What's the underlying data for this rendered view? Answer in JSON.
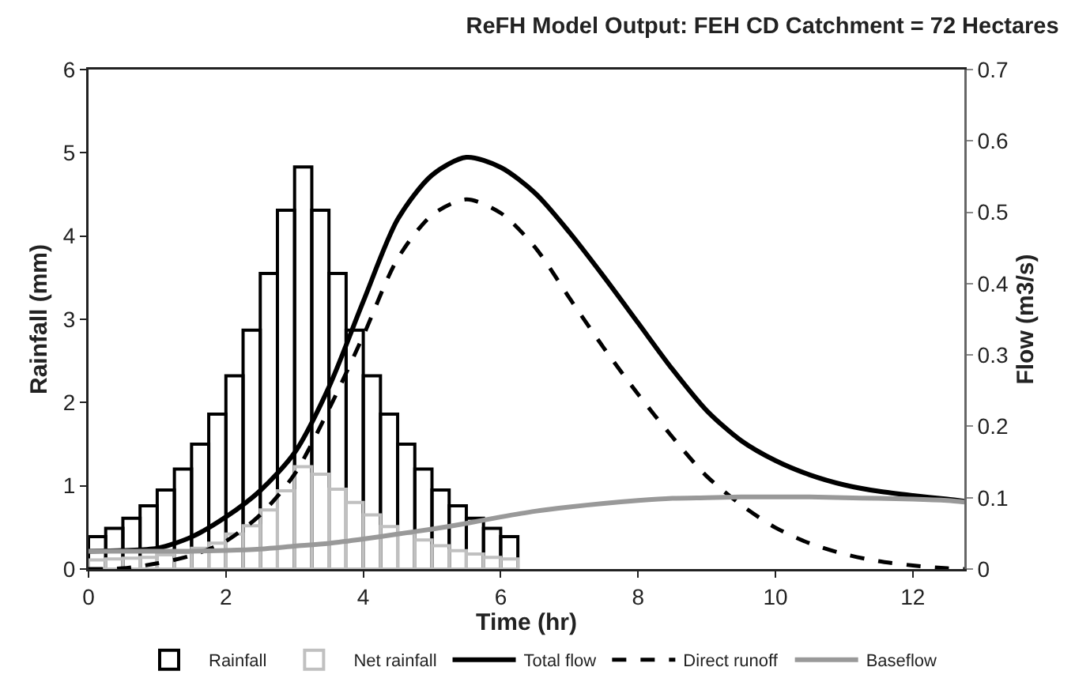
{
  "chart_data": {
    "type": "line",
    "title": "ReFH Model Output: FEH CD Catchment = 72 Hectares",
    "xlabel": "Time (hr)",
    "ylabel": "Rainfall (mm)",
    "y2label": "Flow (m3/s)",
    "xlim": [
      0,
      12.75
    ],
    "xticks": [
      0,
      2,
      4,
      6,
      8,
      10,
      12
    ],
    "ylim": [
      0,
      6
    ],
    "yticks": [
      0,
      1,
      2,
      3,
      4,
      5,
      6
    ],
    "y2lim": [
      0,
      0.7
    ],
    "y2ticks": [
      0,
      0.1,
      0.2,
      0.3,
      0.4,
      0.5,
      0.6,
      0.7
    ],
    "legend": "bottom",
    "series": [
      {
        "name": "Rainfall",
        "type": "bar",
        "color": "#000000",
        "x": [
          0.125,
          0.375,
          0.625,
          0.875,
          1.125,
          1.375,
          1.625,
          1.875,
          2.125,
          2.375,
          2.625,
          2.875,
          3.125,
          3.375,
          3.625,
          3.875,
          4.125,
          4.375,
          4.625,
          4.875,
          5.125,
          5.375,
          5.625,
          5.875,
          6.125
        ],
        "values": [
          0.39,
          0.49,
          0.61,
          0.76,
          0.95,
          1.2,
          1.5,
          1.86,
          2.32,
          2.87,
          3.55,
          4.31,
          4.83,
          4.31,
          3.55,
          2.87,
          2.32,
          1.86,
          1.5,
          1.2,
          0.95,
          0.76,
          0.61,
          0.49,
          0.39
        ]
      },
      {
        "name": "Net rainfall",
        "type": "bar",
        "color": "#c0c0c0",
        "x": [
          0.125,
          0.375,
          0.625,
          0.875,
          1.125,
          1.375,
          1.625,
          1.875,
          2.125,
          2.375,
          2.625,
          2.875,
          3.125,
          3.375,
          3.625,
          3.875,
          4.125,
          4.375,
          4.625,
          4.875,
          5.125,
          5.375,
          5.625,
          5.875,
          6.125
        ],
        "values": [
          0.11,
          0.12,
          0.13,
          0.14,
          0.17,
          0.2,
          0.25,
          0.31,
          0.42,
          0.52,
          0.71,
          0.94,
          1.23,
          1.14,
          0.96,
          0.8,
          0.65,
          0.51,
          0.43,
          0.35,
          0.28,
          0.22,
          0.18,
          0.14,
          0.12
        ]
      },
      {
        "name": "Total flow",
        "axis": "y2",
        "color": "#000000",
        "line_style": "solid",
        "x": [
          0,
          0.5,
          1,
          1.5,
          2,
          2.5,
          3,
          3.5,
          4,
          4.5,
          5,
          5.5,
          6,
          6.5,
          7,
          7.5,
          8,
          8.5,
          9,
          9.5,
          10,
          10.5,
          11,
          11.5,
          12,
          12.5,
          12.75
        ],
        "values": [
          0.025,
          0.026,
          0.029,
          0.045,
          0.073,
          0.11,
          0.163,
          0.255,
          0.375,
          0.49,
          0.552,
          0.577,
          0.563,
          0.527,
          0.472,
          0.41,
          0.345,
          0.28,
          0.222,
          0.18,
          0.152,
          0.132,
          0.118,
          0.109,
          0.103,
          0.098,
          0.095
        ]
      },
      {
        "name": "Direct runoff",
        "axis": "y2",
        "color": "#000000",
        "line_style": "dashed",
        "x": [
          0,
          0.5,
          1,
          1.5,
          2,
          2.5,
          3,
          3.5,
          4,
          4.5,
          5,
          5.5,
          6,
          6.5,
          7,
          7.5,
          8,
          8.5,
          9,
          9.5,
          10,
          10.5,
          11,
          11.5,
          12,
          12.5,
          12.75
        ],
        "values": [
          0,
          0.001,
          0.008,
          0.019,
          0.039,
          0.076,
          0.133,
          0.224,
          0.327,
          0.435,
          0.496,
          0.518,
          0.499,
          0.451,
          0.38,
          0.31,
          0.245,
          0.185,
          0.13,
          0.09,
          0.058,
          0.036,
          0.021,
          0.011,
          0.005,
          0.001,
          0
        ]
      },
      {
        "name": "Baseflow",
        "axis": "y2",
        "color": "#999999",
        "line_style": "solid",
        "x": [
          0,
          0.5,
          1,
          1.5,
          2,
          2.5,
          3,
          3.5,
          4,
          4.5,
          5,
          5.5,
          6,
          6.5,
          7,
          7.5,
          8,
          8.5,
          9,
          9.5,
          10,
          10.5,
          11,
          11.5,
          12,
          12.5,
          12.75
        ],
        "values": [
          0.025,
          0.025,
          0.025,
          0.025,
          0.026,
          0.028,
          0.032,
          0.036,
          0.042,
          0.049,
          0.056,
          0.064,
          0.073,
          0.081,
          0.087,
          0.092,
          0.096,
          0.099,
          0.1,
          0.101,
          0.101,
          0.101,
          0.1,
          0.099,
          0.098,
          0.096,
          0.094
        ]
      }
    ]
  }
}
